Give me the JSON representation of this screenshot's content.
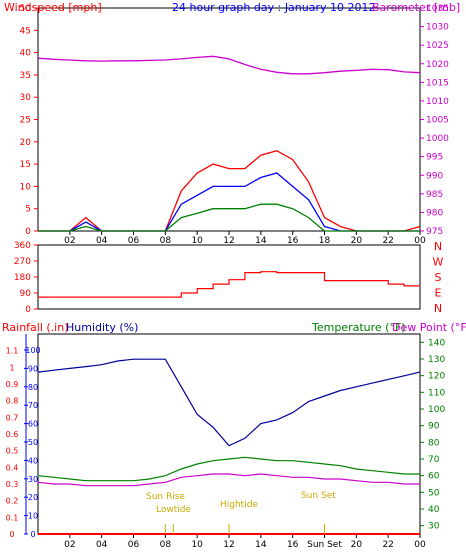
{
  "header": {
    "left_label": "Windspeed [mph]",
    "title": "24 hour graph day : January 10 2012",
    "right_label": "Barometer [mb]"
  },
  "colors": {
    "red": "#ff0000",
    "blue": "#0000ff",
    "green": "#008000",
    "magenta": "#cc00cc",
    "navy": "#000099",
    "yellow": "#ccaa00"
  },
  "x_ticks": [
    "02",
    "04",
    "06",
    "08",
    "10",
    "12",
    "14",
    "16",
    "18",
    "20",
    "22",
    "00"
  ],
  "bottom_x_ticks": [
    "02",
    "04",
    "06",
    "08",
    "10",
    "12",
    "14",
    "16",
    "Sun Set",
    "20",
    "22",
    "00"
  ],
  "chart_data": [
    {
      "type": "line",
      "title": "24 hour graph day : January 10 2012",
      "ylabel": "Windspeed [mph]",
      "y2label": "Barometer [mb]",
      "ylim": [
        0,
        50
      ],
      "y2lim": [
        975,
        1035
      ],
      "yticks": [
        "0",
        "5",
        "10",
        "15",
        "20",
        "25",
        "30",
        "35",
        "40",
        "45",
        "50"
      ],
      "y2ticks": [
        "975",
        "980",
        "985",
        "990",
        "995",
        "1000",
        "1005",
        "1010",
        "1015",
        "1020",
        "1025",
        "1030",
        "1035"
      ],
      "x_hours": [
        0,
        1,
        2,
        3,
        4,
        5,
        6,
        7,
        8,
        9,
        10,
        11,
        12,
        13,
        14,
        15,
        16,
        17,
        18,
        19,
        20,
        21,
        22,
        23,
        24
      ],
      "series": [
        {
          "name": "Barometer",
          "color": "magenta",
          "axis": "right",
          "values": [
            1021.5,
            1021.2,
            1021,
            1020.8,
            1020.7,
            1020.8,
            1020.8,
            1020.9,
            1021,
            1021.3,
            1021.7,
            1022,
            1021.3,
            1019.8,
            1018.5,
            1017.7,
            1017.3,
            1017.3,
            1017.6,
            1018,
            1018.2,
            1018.5,
            1018.4,
            1017.8,
            1017.6
          ]
        },
        {
          "name": "Gust",
          "color": "red",
          "axis": "left",
          "values": [
            0,
            0,
            0,
            3,
            0,
            0,
            0,
            0,
            0,
            9,
            13,
            15,
            14,
            14,
            17,
            18,
            16,
            11,
            3,
            1,
            0,
            0,
            0,
            0,
            1
          ]
        },
        {
          "name": "Average",
          "color": "blue",
          "axis": "left",
          "values": [
            0,
            0,
            0,
            2,
            0,
            0,
            0,
            0,
            0,
            6,
            8,
            10,
            10,
            10,
            12,
            13,
            10,
            7,
            1,
            0,
            0,
            0,
            0,
            0,
            0
          ]
        },
        {
          "name": "Wind",
          "color": "green",
          "axis": "left",
          "values": [
            0,
            0,
            0,
            1,
            0,
            0,
            0,
            0,
            0,
            3,
            4,
            5,
            5,
            5,
            6,
            6,
            5,
            3,
            0,
            0,
            0,
            0,
            0,
            0,
            0
          ]
        }
      ]
    },
    {
      "type": "line",
      "ylabel": "",
      "ylim": [
        0,
        360
      ],
      "yticks": [
        "0",
        "90",
        "180",
        "270",
        "360"
      ],
      "direction_labels": [
        "N",
        "W",
        "S",
        "E",
        "N"
      ],
      "x_hours": [
        0,
        1,
        2,
        3,
        4,
        5,
        6,
        7,
        8,
        9,
        10,
        11,
        12,
        13,
        14,
        15,
        16,
        17,
        18,
        19,
        20,
        21,
        22,
        23,
        24
      ],
      "series": [
        {
          "name": "Wind Direction",
          "color": "red",
          "values": [
            67,
            67,
            67,
            67,
            67,
            67,
            67,
            67,
            67,
            90,
            115,
            140,
            165,
            205,
            210,
            205,
            205,
            205,
            160,
            160,
            160,
            160,
            140,
            130,
            130
          ]
        }
      ]
    },
    {
      "type": "line",
      "labels": {
        "rainfall": "Rainfall (.in)",
        "humidity": "Humidity (%)",
        "temperature": "Temperature (°F)",
        "dewpoint": "Dew Point (°F)"
      },
      "rain_ticks": [
        "0",
        "0.1",
        "0.2",
        "0.3",
        "0.4",
        "0.5",
        "0.6",
        "0.7",
        "0.8",
        "0.9",
        "1",
        "1.1"
      ],
      "humidity_ticks": [
        "0",
        "10",
        "20",
        "30",
        "40",
        "50",
        "60",
        "70",
        "80",
        "90",
        "100"
      ],
      "temp_ticks": [
        "30",
        "40",
        "50",
        "60",
        "70",
        "80",
        "90",
        "100",
        "110",
        "120",
        "130",
        "140"
      ],
      "annotations": [
        "Sun Rise",
        "Lowtide",
        "Hightide",
        "Sun Set"
      ],
      "x_hours": [
        0,
        1,
        2,
        3,
        4,
        5,
        6,
        7,
        8,
        9,
        10,
        11,
        12,
        13,
        14,
        15,
        16,
        17,
        18,
        19,
        20,
        21,
        22,
        23,
        24
      ],
      "series": [
        {
          "name": "Humidity",
          "color": "navy",
          "axis": "humidity",
          "values": [
            88,
            89,
            90,
            91,
            92,
            94,
            95,
            95,
            95,
            80,
            65,
            58,
            48,
            52,
            60,
            62,
            66,
            72,
            75,
            78,
            80,
            82,
            84,
            86,
            88
          ]
        },
        {
          "name": "Temperature",
          "color": "green",
          "axis": "temp",
          "values": [
            60,
            59,
            58,
            57,
            57,
            57,
            57,
            58,
            60,
            64,
            67,
            69,
            70,
            71,
            70,
            69,
            69,
            68,
            67,
            66,
            64,
            63,
            62,
            61,
            61
          ]
        },
        {
          "name": "Dew Point",
          "color": "magenta",
          "axis": "temp",
          "values": [
            56,
            55,
            55,
            54,
            54,
            54,
            54,
            55,
            56,
            59,
            60,
            61,
            61,
            60,
            61,
            60,
            59,
            59,
            58,
            58,
            57,
            56,
            56,
            55,
            55
          ]
        },
        {
          "name": "Rainfall",
          "color": "red",
          "axis": "rain",
          "values": [
            0,
            0,
            0,
            0,
            0,
            0,
            0,
            0,
            0,
            0,
            0,
            0,
            0,
            0,
            0,
            0,
            0,
            0,
            0,
            0,
            0,
            0,
            0,
            0,
            0
          ]
        }
      ]
    }
  ]
}
